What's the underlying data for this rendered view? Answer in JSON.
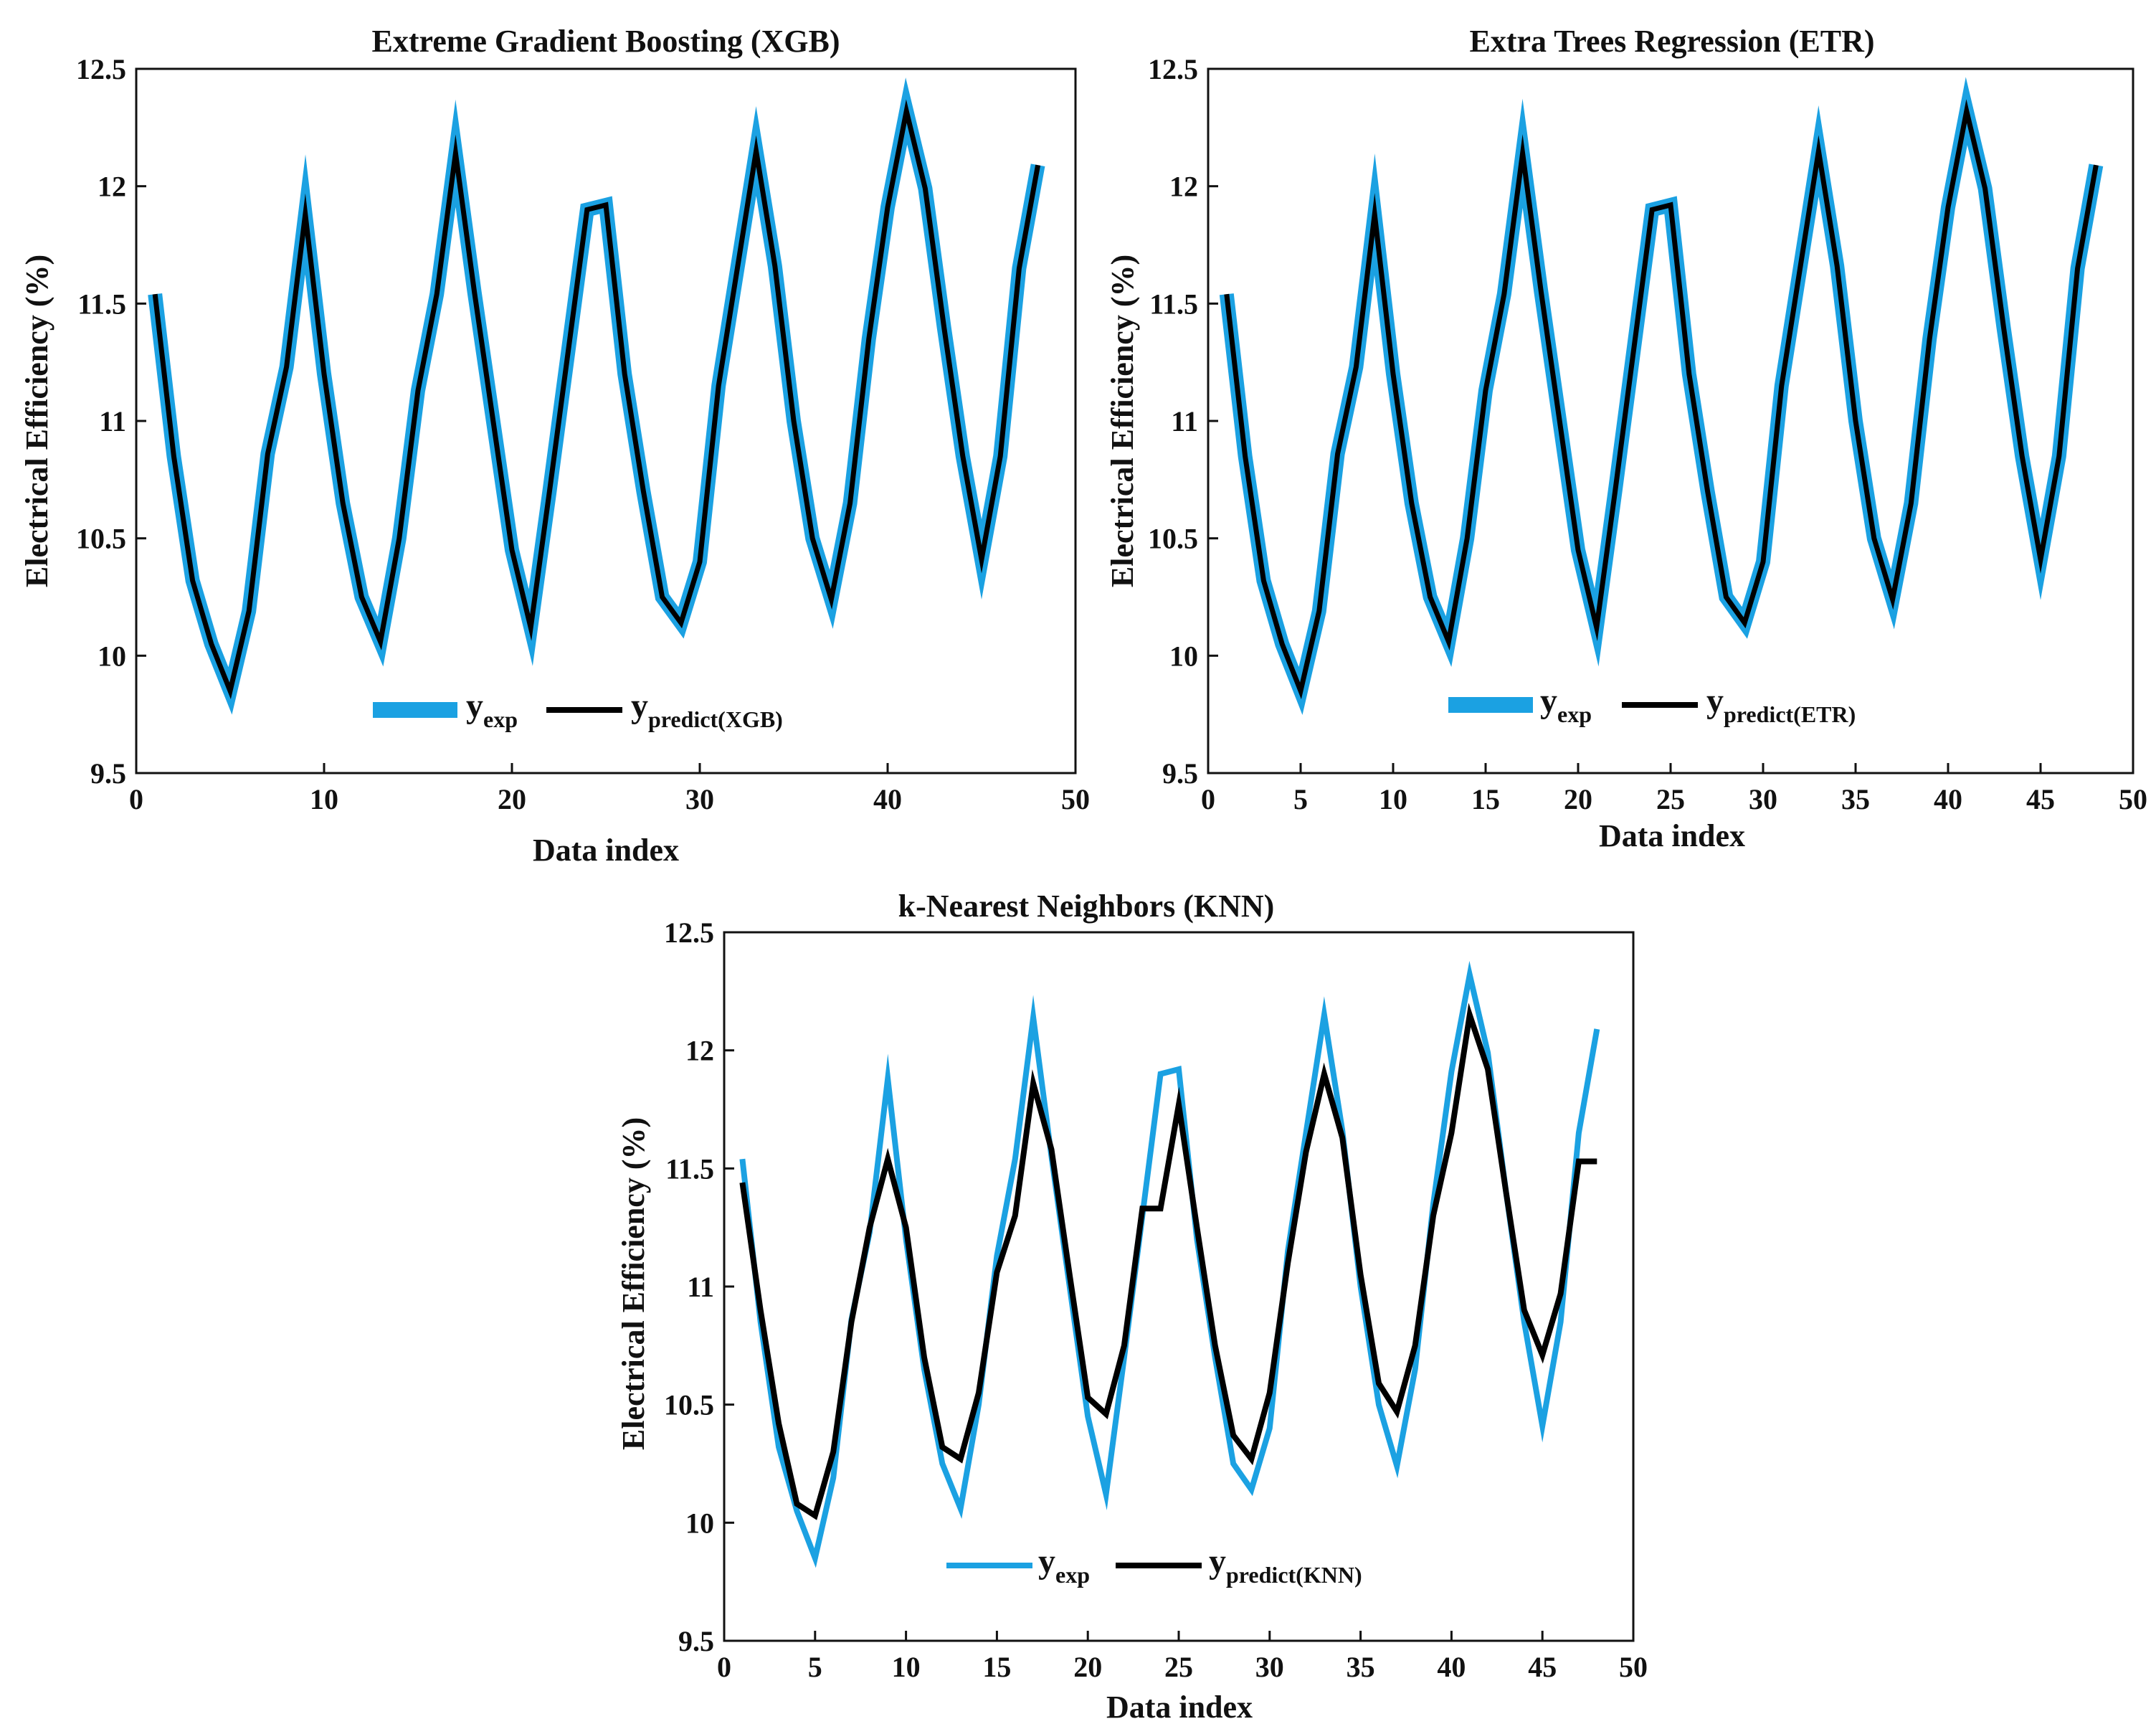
{
  "colors": {
    "exp": "#1ba1e2",
    "predict": "#000000",
    "axis": "#111111"
  },
  "chart_data": [
    {
      "type": "line",
      "title": "Extreme Gradient Boosting (XGB)",
      "xlabel": "Data index",
      "ylabel": "Electrical Efficiency (%)",
      "xlim": [
        0,
        50
      ],
      "ylim": [
        9.5,
        12.5
      ],
      "xticks": [
        "0",
        "10",
        "20",
        "30",
        "40",
        "50"
      ],
      "yticks": [
        "9.5",
        "10",
        "10.5",
        "11",
        "11.5",
        "12",
        "12.5"
      ],
      "legend_position": "bottom-center",
      "legend": {
        "exp_main": "y",
        "exp_sub": "exp",
        "pred_main": "y",
        "pred_sub": "predict(XGB)"
      },
      "series": [
        {
          "name": "y_exp",
          "style": "thick",
          "x": [
            1,
            2,
            3,
            4,
            5,
            6,
            7,
            8,
            9,
            10,
            11,
            12,
            13,
            14,
            15,
            16,
            17,
            18,
            19,
            20,
            21,
            22,
            23,
            24,
            25,
            26,
            27,
            28,
            29,
            30,
            31,
            32,
            33,
            34,
            35,
            36,
            37,
            38,
            39,
            40,
            41,
            42,
            43,
            44,
            45,
            46,
            47,
            48
          ],
          "y": [
            11.54,
            10.85,
            10.32,
            10.05,
            9.85,
            10.19,
            10.86,
            11.23,
            11.88,
            11.2,
            10.65,
            10.25,
            10.06,
            10.5,
            11.13,
            11.54,
            12.14,
            11.55,
            11,
            10.45,
            10.12,
            10.7,
            11.3,
            11.9,
            11.92,
            11.2,
            10.7,
            10.25,
            10.14,
            10.4,
            11.15,
            11.65,
            12.15,
            11.66,
            11,
            10.5,
            10.24,
            10.65,
            11.35,
            11.91,
            12.32,
            11.99,
            11.4,
            10.85,
            10.41,
            10.85,
            11.65,
            12.09
          ]
        },
        {
          "name": "y_predict(XGB)",
          "style": "thin",
          "x": [
            1,
            2,
            3,
            4,
            5,
            6,
            7,
            8,
            9,
            10,
            11,
            12,
            13,
            14,
            15,
            16,
            17,
            18,
            19,
            20,
            21,
            22,
            23,
            24,
            25,
            26,
            27,
            28,
            29,
            30,
            31,
            32,
            33,
            34,
            35,
            36,
            37,
            38,
            39,
            40,
            41,
            42,
            43,
            44,
            45,
            46,
            47,
            48
          ],
          "y": [
            11.54,
            10.85,
            10.32,
            10.05,
            9.85,
            10.19,
            10.86,
            11.23,
            11.88,
            11.2,
            10.65,
            10.25,
            10.06,
            10.5,
            11.13,
            11.54,
            12.14,
            11.55,
            11,
            10.45,
            10.12,
            10.7,
            11.3,
            11.9,
            11.92,
            11.2,
            10.7,
            10.25,
            10.14,
            10.4,
            11.15,
            11.65,
            12.15,
            11.66,
            11,
            10.5,
            10.24,
            10.65,
            11.35,
            11.91,
            12.32,
            11.99,
            11.4,
            10.85,
            10.41,
            10.85,
            11.65,
            12.09
          ]
        }
      ]
    },
    {
      "type": "line",
      "title": "Extra Trees Regression (ETR)",
      "xlabel": "Data index",
      "ylabel": "Electrical Efficiency (%)",
      "xlim": [
        0,
        50
      ],
      "ylim": [
        9.5,
        12.5
      ],
      "xticks": [
        "0",
        "5",
        "10",
        "15",
        "20",
        "25",
        "30",
        "35",
        "40",
        "45",
        "50"
      ],
      "yticks": [
        "9.5",
        "10",
        "10.5",
        "11",
        "11.5",
        "12",
        "12.5"
      ],
      "legend_position": "bottom-center",
      "legend": {
        "exp_main": "y",
        "exp_sub": "exp",
        "pred_main": "y",
        "pred_sub": "predict(ETR)"
      },
      "series": [
        {
          "name": "y_exp",
          "style": "thick",
          "x": [
            1,
            2,
            3,
            4,
            5,
            6,
            7,
            8,
            9,
            10,
            11,
            12,
            13,
            14,
            15,
            16,
            17,
            18,
            19,
            20,
            21,
            22,
            23,
            24,
            25,
            26,
            27,
            28,
            29,
            30,
            31,
            32,
            33,
            34,
            35,
            36,
            37,
            38,
            39,
            40,
            41,
            42,
            43,
            44,
            45,
            46,
            47,
            48
          ],
          "y": [
            11.54,
            10.85,
            10.32,
            10.05,
            9.85,
            10.19,
            10.86,
            11.23,
            11.88,
            11.2,
            10.65,
            10.25,
            10.06,
            10.5,
            11.13,
            11.54,
            12.14,
            11.55,
            11,
            10.45,
            10.12,
            10.7,
            11.3,
            11.9,
            11.92,
            11.2,
            10.7,
            10.25,
            10.14,
            10.4,
            11.15,
            11.65,
            12.15,
            11.66,
            11,
            10.5,
            10.24,
            10.65,
            11.35,
            11.91,
            12.32,
            11.99,
            11.4,
            10.85,
            10.41,
            10.85,
            11.65,
            12.09
          ]
        },
        {
          "name": "y_predict(ETR)",
          "style": "thin",
          "x": [
            1,
            2,
            3,
            4,
            5,
            6,
            7,
            8,
            9,
            10,
            11,
            12,
            13,
            14,
            15,
            16,
            17,
            18,
            19,
            20,
            21,
            22,
            23,
            24,
            25,
            26,
            27,
            28,
            29,
            30,
            31,
            32,
            33,
            34,
            35,
            36,
            37,
            38,
            39,
            40,
            41,
            42,
            43,
            44,
            45,
            46,
            47,
            48
          ],
          "y": [
            11.54,
            10.85,
            10.32,
            10.05,
            9.85,
            10.19,
            10.86,
            11.23,
            11.88,
            11.2,
            10.65,
            10.25,
            10.06,
            10.5,
            11.13,
            11.54,
            12.14,
            11.55,
            11,
            10.45,
            10.12,
            10.7,
            11.3,
            11.9,
            11.92,
            11.2,
            10.7,
            10.25,
            10.14,
            10.4,
            11.15,
            11.65,
            12.15,
            11.66,
            11,
            10.5,
            10.24,
            10.65,
            11.35,
            11.91,
            12.32,
            11.99,
            11.4,
            10.85,
            10.41,
            10.85,
            11.65,
            12.09
          ]
        }
      ]
    },
    {
      "type": "line",
      "title": "k-Nearest Neighbors (KNN)",
      "xlabel": "Data index",
      "ylabel": "Electrical Efficiency (%)",
      "xlim": [
        0,
        50
      ],
      "ylim": [
        9.5,
        12.5
      ],
      "xticks": [
        "0",
        "5",
        "10",
        "15",
        "20",
        "25",
        "30",
        "35",
        "40",
        "45",
        "50"
      ],
      "yticks": [
        "9.5",
        "10",
        "10.5",
        "11",
        "11.5",
        "12",
        "12.5"
      ],
      "legend_position": "bottom-center",
      "legend": {
        "exp_main": "y",
        "exp_sub": "exp",
        "pred_main": "y",
        "pred_sub": "predict(KNN)"
      },
      "series": [
        {
          "name": "y_exp",
          "style": "medium",
          "x": [
            1,
            2,
            3,
            4,
            5,
            6,
            7,
            8,
            9,
            10,
            11,
            12,
            13,
            14,
            15,
            16,
            17,
            18,
            19,
            20,
            21,
            22,
            23,
            24,
            25,
            26,
            27,
            28,
            29,
            30,
            31,
            32,
            33,
            34,
            35,
            36,
            37,
            38,
            39,
            40,
            41,
            42,
            43,
            44,
            45,
            46,
            47,
            48
          ],
          "y": [
            11.54,
            10.85,
            10.32,
            10.05,
            9.85,
            10.19,
            10.86,
            11.23,
            11.88,
            11.2,
            10.65,
            10.25,
            10.06,
            10.5,
            11.13,
            11.54,
            12.14,
            11.55,
            11,
            10.45,
            10.12,
            10.7,
            11.3,
            11.9,
            11.92,
            11.2,
            10.7,
            10.25,
            10.14,
            10.4,
            11.15,
            11.65,
            12.15,
            11.66,
            11,
            10.5,
            10.24,
            10.65,
            11.35,
            11.91,
            12.32,
            11.99,
            11.4,
            10.85,
            10.41,
            10.85,
            11.65,
            12.09
          ]
        },
        {
          "name": "y_predict(KNN)",
          "style": "medium",
          "x": [
            1,
            2,
            3,
            4,
            5,
            6,
            7,
            8,
            9,
            10,
            11,
            12,
            13,
            14,
            15,
            16,
            17,
            18,
            19,
            20,
            21,
            22,
            23,
            24,
            25,
            26,
            27,
            28,
            29,
            30,
            31,
            32,
            33,
            34,
            35,
            36,
            37,
            38,
            39,
            40,
            41,
            42,
            43,
            44,
            45,
            46,
            47,
            48
          ],
          "y": [
            11.44,
            10.9,
            10.42,
            10.08,
            10.03,
            10.3,
            10.85,
            11.25,
            11.54,
            11.25,
            10.7,
            10.32,
            10.27,
            10.55,
            11.06,
            11.3,
            11.86,
            11.58,
            11.05,
            10.53,
            10.46,
            10.75,
            11.33,
            11.33,
            11.77,
            11.25,
            10.75,
            10.37,
            10.27,
            10.55,
            11.1,
            11.57,
            11.9,
            11.63,
            11.05,
            10.59,
            10.47,
            10.75,
            11.3,
            11.65,
            12.15,
            11.92,
            11.4,
            10.9,
            10.71,
            10.97,
            11.53,
            11.53
          ]
        }
      ]
    }
  ]
}
